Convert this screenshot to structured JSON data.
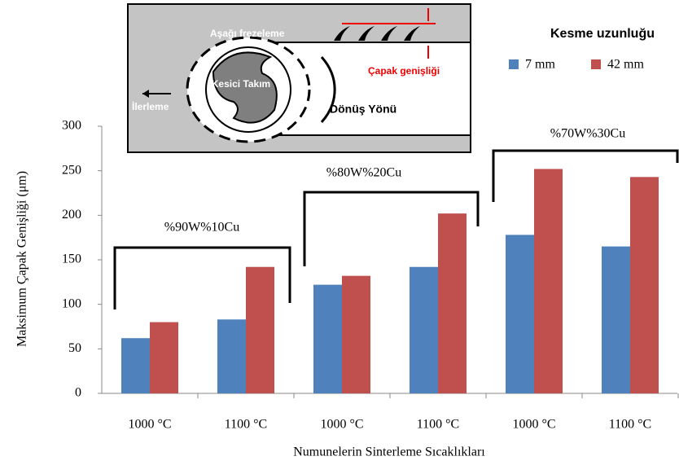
{
  "chart_data": {
    "type": "bar",
    "y_label": "Maksimum Çapak Genişliği (μm)",
    "x_label": "Numunelerin Sinterleme Sıcaklıkları",
    "categories": [
      "1000 °C",
      "1100 °C",
      "1000 °C",
      "1100 °C",
      "1000 °C",
      "1100 °C"
    ],
    "legend_title": "Kesme uzunluğu",
    "series": [
      {
        "name": "7 mm",
        "color": "#4f81bd",
        "values": [
          62,
          83,
          122,
          142,
          178,
          165
        ]
      },
      {
        "name": "42 mm",
        "color": "#c0504d",
        "values": [
          80,
          142,
          132,
          202,
          252,
          243
        ]
      }
    ],
    "ylim": [
      0,
      300
    ],
    "yticks": [
      0,
      50,
      100,
      150,
      200,
      250,
      300
    ],
    "grid": false,
    "annotations": [
      "%90W%10Cu",
      "%80W%20Cu",
      "%70W%30Cu"
    ],
    "inset_labels": {
      "milling": "Aşağı frezeleme",
      "burr": "Çapak genişliği",
      "tool": "Kesici Takım",
      "feed": "İlerleme",
      "rotation": "Dönüş Yönü"
    }
  }
}
